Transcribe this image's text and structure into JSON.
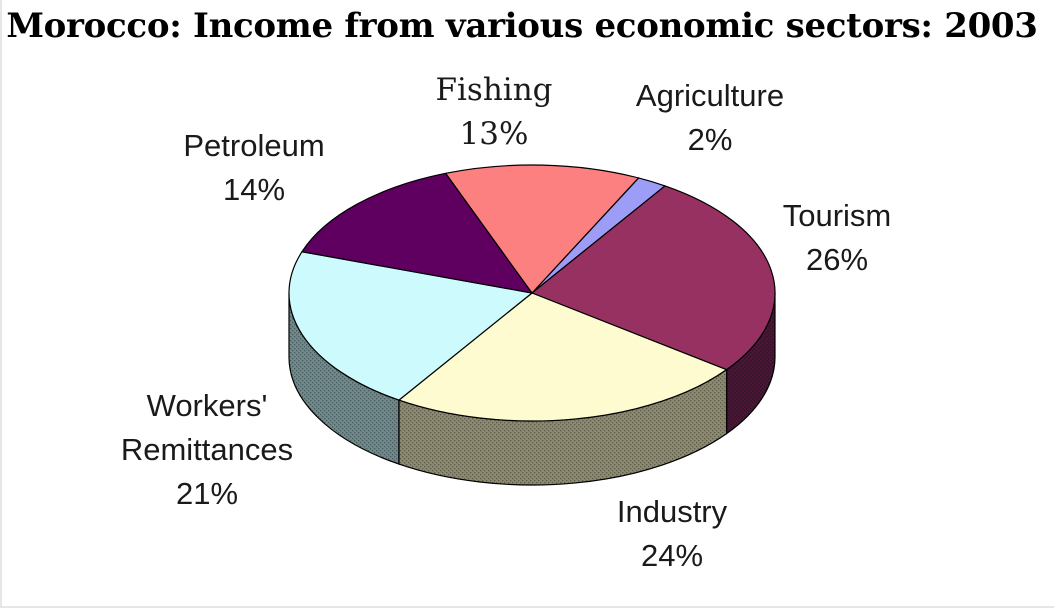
{
  "chart_data": {
    "type": "pie",
    "title": "Morocco: Income from various economic sectors: 2003",
    "three_d": true,
    "slices": [
      {
        "label": "Agriculture",
        "value": 2,
        "value_label": "2%",
        "color": "#9d9cf6",
        "side_color": "#55547d"
      },
      {
        "label": "Tourism",
        "value": 26,
        "value_label": "26%",
        "color": "#973162",
        "side_color": "#4b1636"
      },
      {
        "label": "Industry",
        "value": 24,
        "value_label": "24%",
        "color": "#fdfbcf",
        "side_color": "#8e8a6f"
      },
      {
        "label": "Workers' Remittances",
        "label_lines": [
          "Workers'",
          "Remittances"
        ],
        "value": 21,
        "value_label": "21%",
        "color": "#cdfbfd",
        "side_color": "#6f8a8c"
      },
      {
        "label": "Petroleum",
        "value": 14,
        "value_label": "14%",
        "color": "#5f0060",
        "side_color": "#2d002d"
      },
      {
        "label": "Fishing",
        "value": 13,
        "value_label": "13%",
        "color": "#fd8080",
        "side_color": "#8a4444"
      }
    ]
  }
}
